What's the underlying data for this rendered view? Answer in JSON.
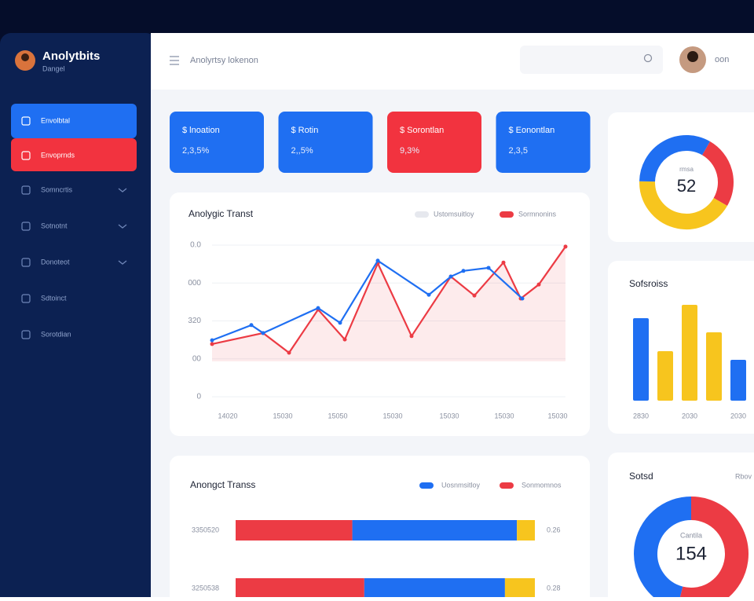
{
  "sidebar": {
    "brand": "Anolytbits",
    "subtitle": "Dangel",
    "items": [
      "Envolbtal",
      "Envoprnds",
      "Somncrtis",
      "Sotnotnt",
      "Donoteot",
      "Sdtoinct",
      "Sorotdian"
    ]
  },
  "header": {
    "breadcrumb": "Anolyrtsy lokenon",
    "user": "oon"
  },
  "cards": [
    {
      "title": "$ lnoation",
      "value": "2,3,5%",
      "color": "#1f6ff2"
    },
    {
      "title": "$ Rotin",
      "value": "2,,5%",
      "color": "#1f6ff2"
    },
    {
      "title": "$ Sorontlan",
      "value": "9,3%",
      "color": "#f2333f"
    },
    {
      "title": "$ Eonontlan",
      "value": "2,3,5",
      "color": "#1f6ff2"
    }
  ],
  "line_chart": {
    "type": "line",
    "title": "Anolygic Transt",
    "xlim": [
      0,
      450
    ],
    "ylim": [
      0,
      400
    ],
    "yticks": [
      0,
      {
        "value": 100,
        "label": "00"
      },
      {
        "value": 200,
        "label": "320"
      },
      {
        "value": 300,
        "label": "000"
      },
      {
        "value": 400,
        "label": "0.0"
      }
    ],
    "xticks": [
      {
        "value": 20,
        "label": "14020"
      },
      {
        "value": 90,
        "label": "15030"
      },
      {
        "value": 160,
        "label": "15050"
      },
      {
        "value": 230,
        "label": "15030"
      },
      {
        "value": 302,
        "label": "15030"
      },
      {
        "value": 372,
        "label": "15030"
      },
      {
        "value": 440,
        "label": "15030"
      }
    ],
    "series": [
      {
        "name": "Ustomsuitloy",
        "color": "#1f6ff2",
        "x": [
          0,
          50,
          65,
          135,
          163,
          211,
          276,
          304,
          320,
          352,
          395
        ],
        "values": [
          149,
          189,
          168,
          234,
          195,
          359,
          269,
          317,
          332,
          340,
          259
        ]
      },
      {
        "name": "Sormnonins",
        "color": "#ec3b44",
        "x": [
          0,
          65,
          98,
          135,
          169,
          211,
          254,
          304,
          334,
          371,
          393,
          416,
          450
        ],
        "values": [
          139,
          168,
          116,
          230,
          151,
          352,
          160,
          317,
          267,
          354,
          259,
          296,
          396
        ]
      }
    ]
  },
  "donut": {
    "type": "pie",
    "label": "rmsa",
    "center": "52",
    "values": [
      25,
      42,
      33
    ],
    "colors": [
      "#ec3b44",
      "#f7c51e",
      "#1f6ff2"
    ]
  },
  "bar_chart": {
    "type": "bar",
    "title": "Sofsroiss",
    "categories": [
      "2830",
      null,
      "2030",
      null,
      "2030"
    ],
    "values": [
      105,
      63,
      122,
      87,
      52
    ],
    "colors": [
      "#1f6ff2",
      "#f7c51e",
      "#f7c51e",
      "#f7c51e",
      "#1f6ff2"
    ]
  },
  "stacked": {
    "type": "stacked-bar",
    "title": "Anongct Transs",
    "legend": [
      {
        "name": "Uosnmsitloy",
        "color": "#1f6ff2"
      },
      {
        "name": "Sonmomnos",
        "color": "#ec3b44"
      }
    ],
    "colors": [
      "#ec3b44",
      "#1f6ff2",
      "#f7c51e"
    ],
    "rows": [
      {
        "label": "3350520",
        "values": [
          39,
          55,
          6
        ],
        "end_label": "0.26"
      },
      {
        "label": "3250538",
        "values": [
          43,
          47,
          10
        ],
        "end_label": "0.28"
      }
    ]
  },
  "donut2": {
    "type": "pie",
    "title": "Sotsd",
    "menu": "Rbov",
    "label": "Cantila",
    "center": "154",
    "values": [
      54,
      46
    ],
    "colors": [
      "#ec3b44",
      "#1f6ff2"
    ]
  }
}
